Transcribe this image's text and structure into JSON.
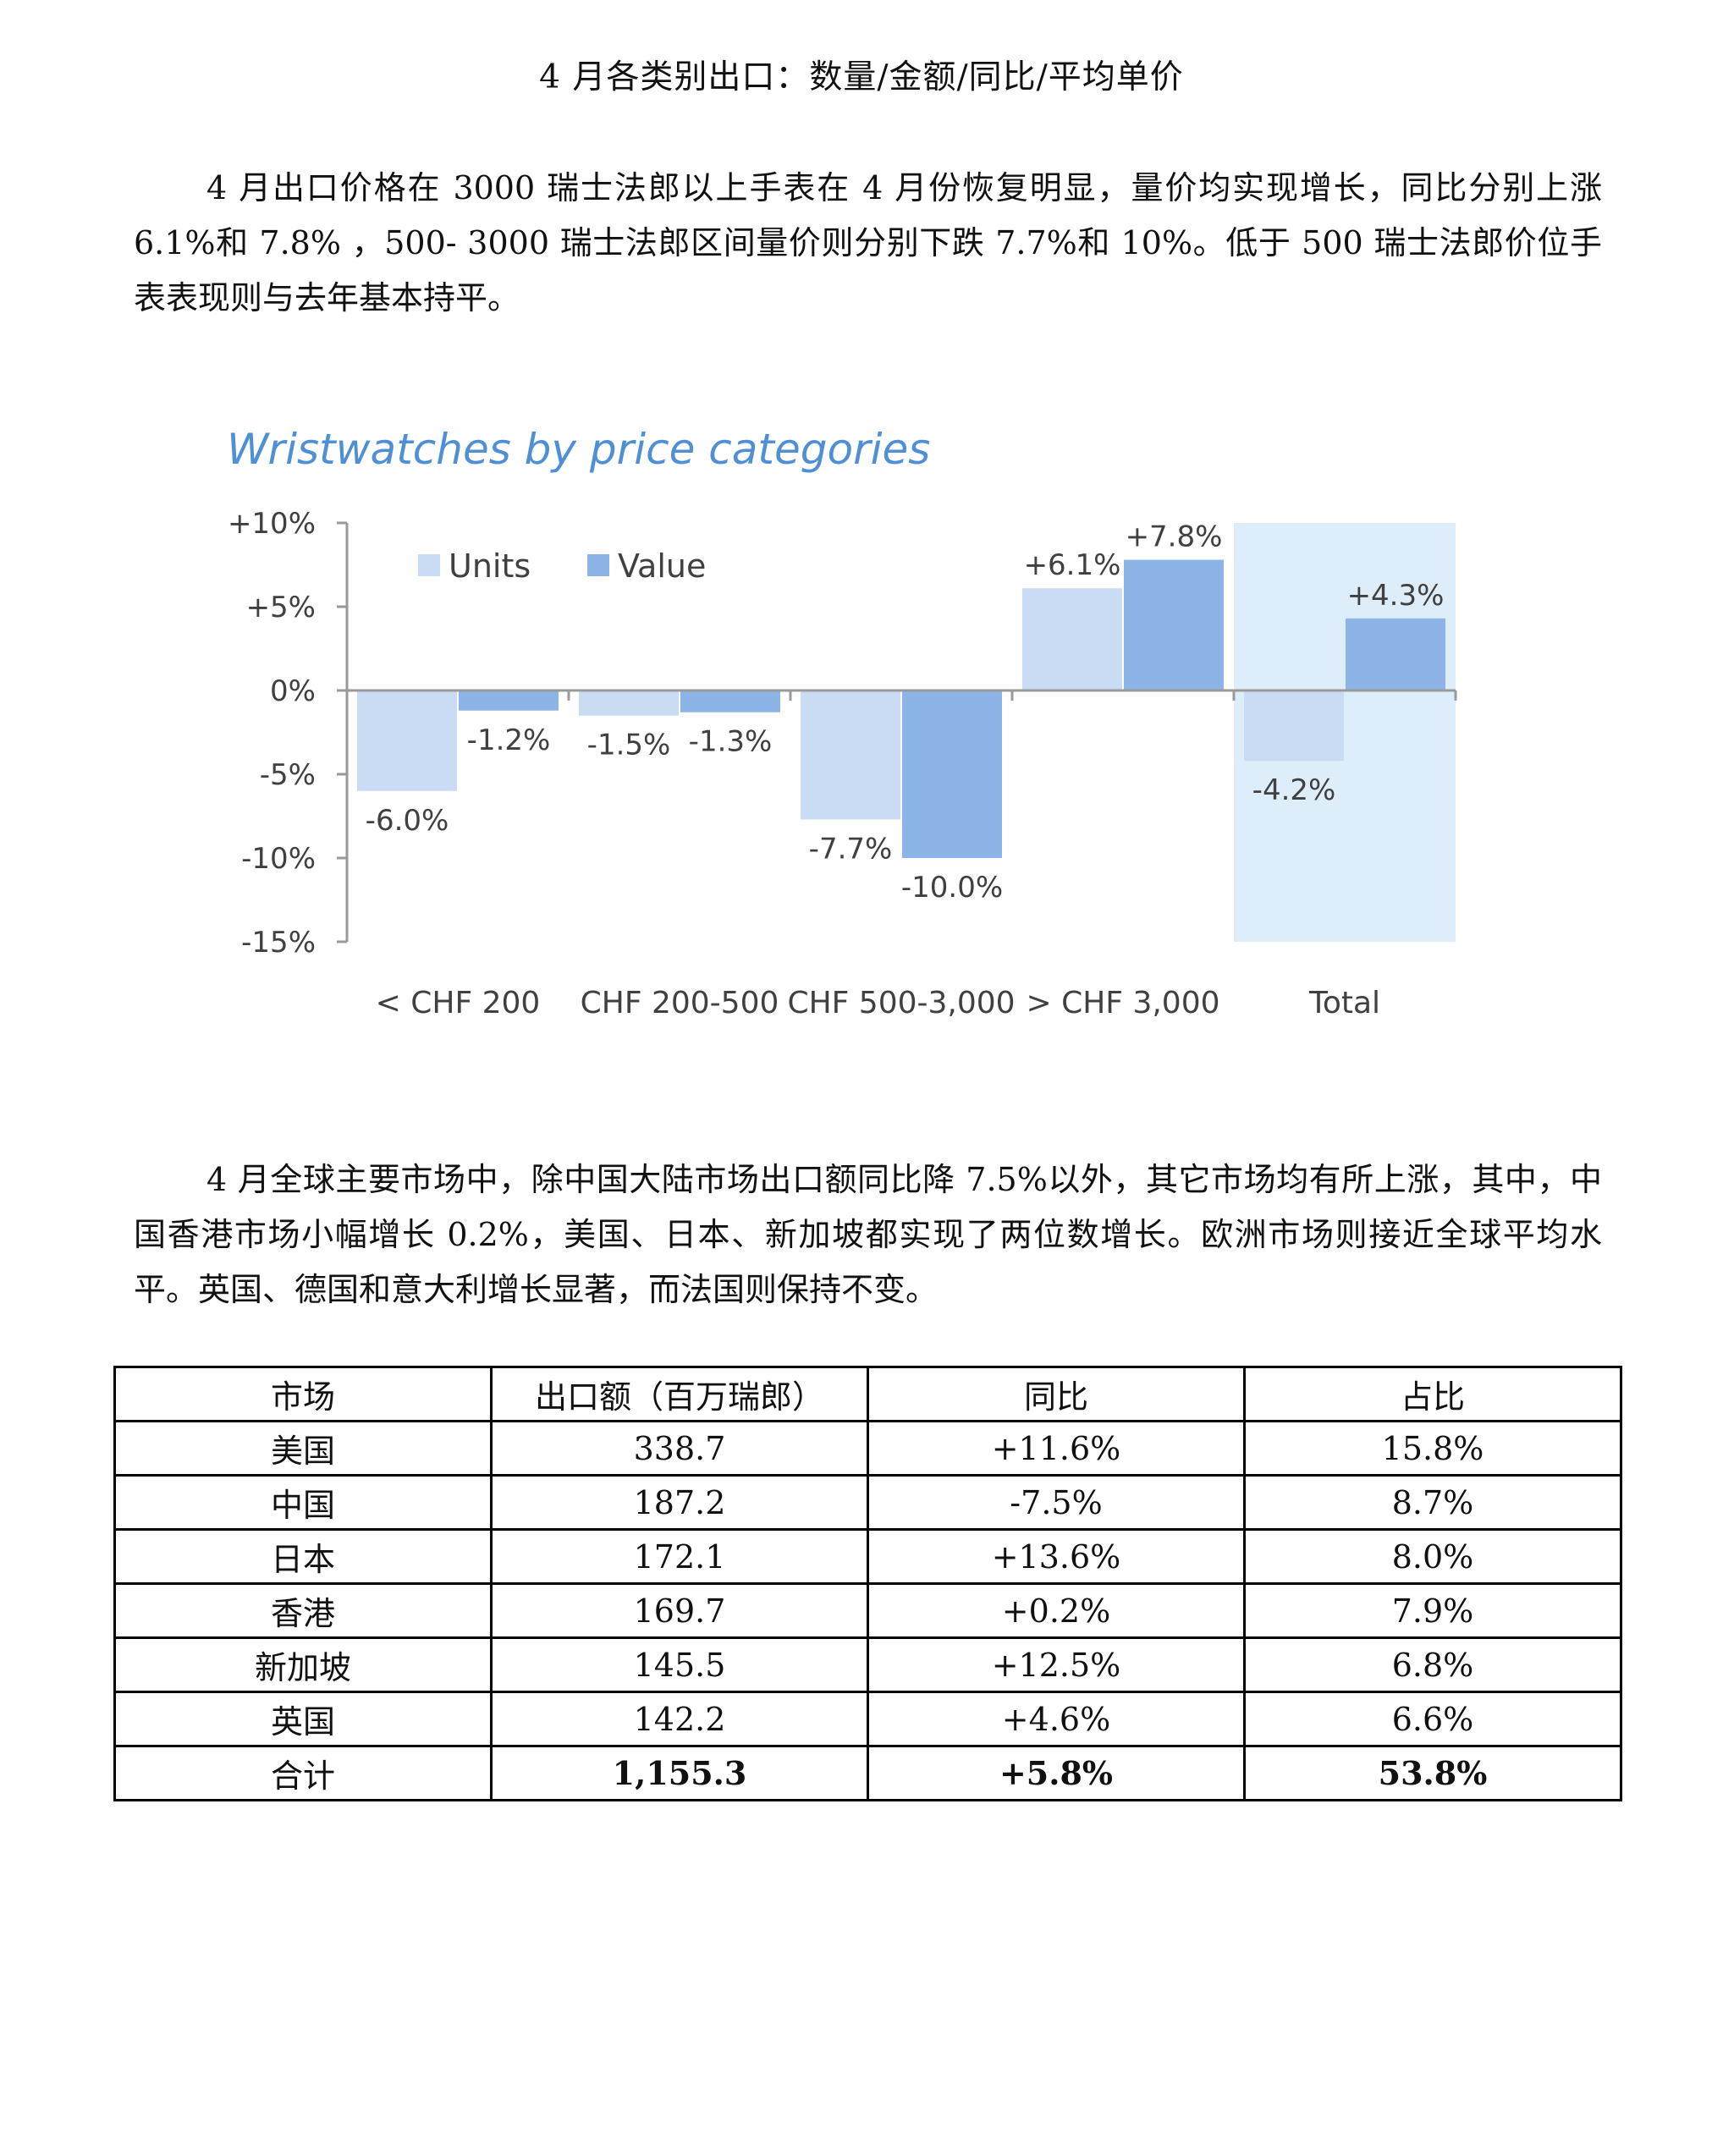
{
  "heading": "4 月各类别出口：数量/金额/同比/平均单价",
  "paragraph1": "4 月出口价格在 3000 瑞士法郎以上手表在 4 月份恢复明显，量价均实现增长，同比分别上涨 6.1%和 7.8% ，500- 3000 瑞士法郎区间量价则分别下跌 7.7%和 10%。低于 500 瑞士法郎价位手表表现则与去年基本持平。",
  "paragraph2": "4 月全球主要市场中，除中国大陆市场出口额同比降 7.5%以外，其它市场均有所上涨，其中，中国香港市场小幅增长 0.2%，美国、日本、新加坡都实现了两位数增长。欧洲市场则接近全球平均水平。英国、德国和意大利增长显著，而法国则保持不变。",
  "chart_data": {
    "type": "bar",
    "title": "Wristwatches by price categories",
    "categories": [
      "< CHF 200",
      "CHF 200-500",
      "CHF 500-3,000",
      "> CHF 3,000",
      "Total"
    ],
    "series": [
      {
        "name": "Units",
        "values": [
          -6.0,
          -1.5,
          -7.7,
          6.1,
          -4.2
        ]
      },
      {
        "name": "Value",
        "values": [
          -1.2,
          -1.3,
          -10.0,
          7.8,
          4.3
        ]
      }
    ],
    "data_labels": {
      "Units": [
        "-6.0%",
        "-1.5%",
        "-7.7%",
        "+6.1%",
        "-4.2%"
      ],
      "Value": [
        "-1.2%",
        "-1.3%",
        "-10.0%",
        "+7.8%",
        "+4.3%"
      ]
    },
    "yticks": [
      10,
      5,
      0,
      -5,
      -10,
      -15
    ],
    "ytick_labels": [
      "+10%",
      "+5%",
      "0%",
      "-5%",
      "-10%",
      "-15%"
    ],
    "ylim": [
      -15,
      10
    ],
    "legend_position": "top-left",
    "highlighted_category": "Total",
    "colors": {
      "units": "#c9dcf3",
      "value": "#8db4e6",
      "title": "#4f8fd6",
      "highlight": "#ddedf9",
      "axis": "#9a9a9a",
      "text": "#404040"
    }
  },
  "table": {
    "headers": [
      "市场",
      "出口额（百万瑞郎）",
      "同比",
      "占比"
    ],
    "rows": [
      [
        "美国",
        "338.7",
        "+11.6%",
        "15.8%"
      ],
      [
        "中国",
        "187.2",
        "-7.5%",
        "8.7%"
      ],
      [
        "日本",
        "172.1",
        "+13.6%",
        "8.0%"
      ],
      [
        "香港",
        "169.7",
        "+0.2%",
        "7.9%"
      ],
      [
        "新加坡",
        "145.5",
        "+12.5%",
        "6.8%"
      ],
      [
        "英国",
        "142.2",
        "+4.6%",
        "6.6%"
      ]
    ],
    "total": [
      "合计",
      "1,155.3",
      "+5.8%",
      "53.8%"
    ]
  }
}
